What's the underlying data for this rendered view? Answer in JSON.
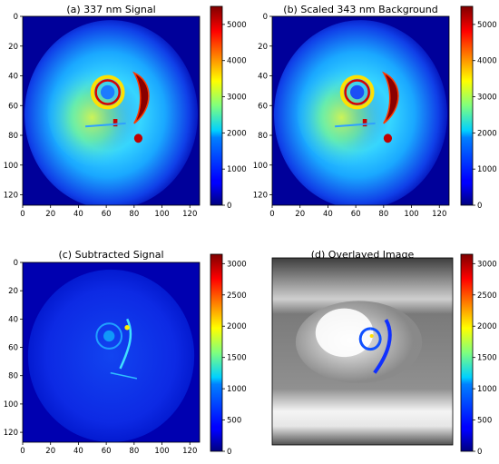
{
  "chart_data": [
    {
      "type": "heatmap",
      "title": "(a) 337 nm Signal",
      "x_ticks": [
        0,
        20,
        40,
        60,
        80,
        100,
        120
      ],
      "y_ticks": [
        0,
        20,
        40,
        60,
        80,
        100,
        120
      ],
      "xlim": [
        0,
        127
      ],
      "ylim": [
        127,
        0
      ],
      "colorbar_ticks": [
        0,
        1000,
        2000,
        3000,
        4000,
        5000
      ],
      "colorbar_range": [
        0,
        5500
      ],
      "colormap": "jet",
      "image_kind": "signal"
    },
    {
      "type": "heatmap",
      "title": "(b) Scaled 343 nm Background",
      "x_ticks": [
        0,
        20,
        40,
        60,
        80,
        100,
        120
      ],
      "y_ticks": [
        0,
        20,
        40,
        60,
        80,
        100,
        120
      ],
      "xlim": [
        0,
        127
      ],
      "ylim": [
        127,
        0
      ],
      "colorbar_ticks": [
        0,
        1000,
        2000,
        3000,
        4000,
        5000
      ],
      "colorbar_range": [
        0,
        5500
      ],
      "colormap": "jet",
      "image_kind": "background"
    },
    {
      "type": "heatmap",
      "title": "(c) Subtracted Signal",
      "x_ticks": [
        0,
        20,
        40,
        60,
        80,
        100,
        120
      ],
      "y_ticks": [
        0,
        20,
        40,
        60,
        80,
        100,
        120
      ],
      "xlim": [
        0,
        127
      ],
      "ylim": [
        127,
        0
      ],
      "colorbar_ticks": [
        0,
        500,
        1000,
        1500,
        2000,
        2500,
        3000
      ],
      "colorbar_range": [
        0,
        3150
      ],
      "colormap": "jet",
      "image_kind": "subtracted"
    },
    {
      "type": "heatmap",
      "title": "(d) Overlayed Image",
      "x_ticks": [],
      "y_ticks": [],
      "colorbar_ticks": [
        0,
        500,
        1000,
        1500,
        2000,
        2500,
        3000
      ],
      "colorbar_range": [
        0,
        3150
      ],
      "colormap": "jet",
      "image_kind": "overlay"
    }
  ],
  "colors": {
    "jet_low": "#00007f",
    "jet_mid": "#7fff7f",
    "jet_high": "#7f0000"
  }
}
